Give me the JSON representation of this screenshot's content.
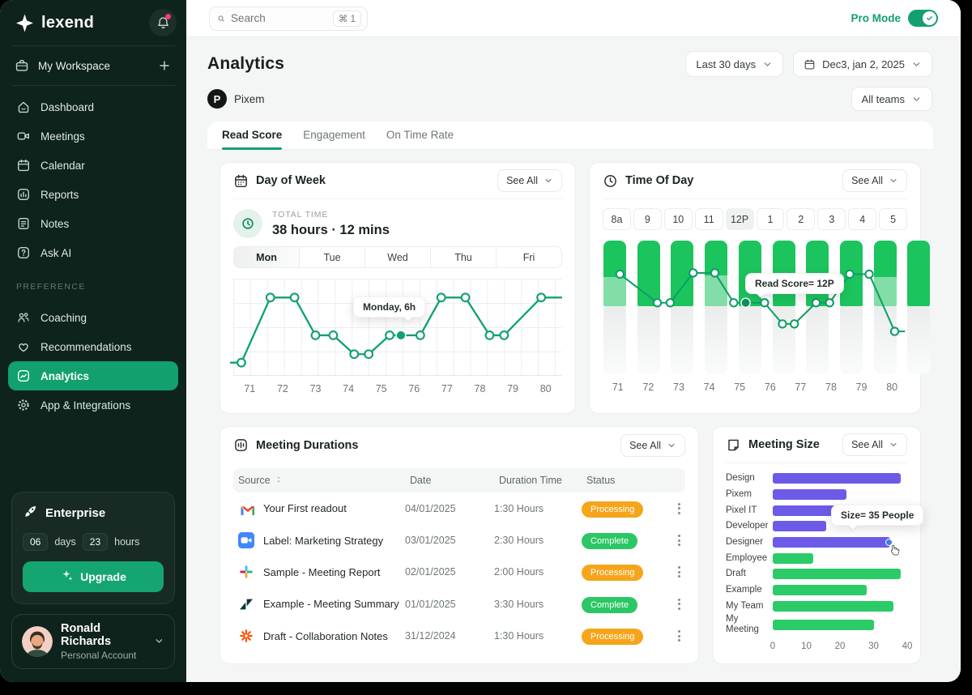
{
  "see_all": "See All",
  "sidebar": {
    "logo_text": "lexend",
    "workspace": {
      "label": "My Workspace"
    },
    "nav_main": [
      {
        "icon": "home-icon",
        "label": "Dashboard"
      },
      {
        "icon": "video-icon",
        "label": "Meetings"
      },
      {
        "icon": "calendar-icon",
        "label": "Calendar"
      },
      {
        "icon": "reports-icon",
        "label": "Reports"
      },
      {
        "icon": "notes-icon",
        "label": "Notes"
      },
      {
        "icon": "ask-ai-icon",
        "label": "Ask AI"
      }
    ],
    "preference_label": "PREFERENCE",
    "nav_preference": [
      {
        "icon": "coaching-icon",
        "label": "Coaching"
      },
      {
        "icon": "heart-icon",
        "label": "Recommendations"
      },
      {
        "icon": "analytics-icon",
        "label": "Analytics",
        "active": true
      },
      {
        "icon": "integrations-icon",
        "label": "App & Integrations"
      }
    ],
    "enterprise": {
      "title": "Enterprise",
      "days_value": "06",
      "days_label": "days",
      "hours_value": "23",
      "hours_label": "hours",
      "upgrade_label": "Upgrade"
    },
    "user": {
      "name": "Ronald Richards",
      "account_type": "Personal Account"
    }
  },
  "topbar": {
    "search_placeholder": "Search",
    "search_shortcut": "⌘ 1",
    "pro_mode_label": "Pro Mode"
  },
  "header": {
    "title": "Analytics",
    "range_filter": "Last 30 days",
    "date_filter": "Dec3, jan 2, 2025",
    "brand": "Pixem",
    "brand_initial": "P",
    "teams_filter": "All teams"
  },
  "tabs": [
    {
      "label": "Read Score",
      "active": true
    },
    {
      "label": "Engagement",
      "active": false
    },
    {
      "label": "On Time Rate",
      "active": false
    }
  ],
  "cards": {
    "day_of_week": {
      "title": "Day of Week",
      "total_time_label": "TOTAL TIME",
      "total_time_value": "38 hours · 12 mins",
      "day_tabs": [
        "Mon",
        "Tue",
        "Wed",
        "Thu",
        "Fri"
      ],
      "active_day": "Mon",
      "tooltip": "Monday, 6h"
    },
    "time_of_day": {
      "title": "Time Of Day",
      "hour_tabs": [
        "8a",
        "9",
        "10",
        "11",
        "12P",
        "1",
        "2",
        "3",
        "4",
        "5"
      ],
      "active_hour": "12P",
      "tooltip": "Read Score= 12P"
    },
    "meeting_durations": {
      "title": "Meeting Durations",
      "columns": [
        "Source",
        "Date",
        "Duration Time",
        "Status"
      ],
      "rows": [
        {
          "icon": "gmail-icon",
          "source": "Your First readout",
          "date": "04/01/2025",
          "duration": "1:30 Hours",
          "status": "Processing"
        },
        {
          "icon": "zoom-icon",
          "source": "Label: Marketing Strategy",
          "date": "03/01/2025",
          "duration": "2:30 Hours",
          "status": "Complete"
        },
        {
          "icon": "slack-icon",
          "source": "Sample - Meeting Report",
          "date": "02/01/2025",
          "duration": "2:00 Hours",
          "status": "Processing"
        },
        {
          "icon": "zendesk-icon",
          "source": "Example - Meeting Summary",
          "date": "01/01/2025",
          "duration": "3:30 Hours",
          "status": "Complete"
        },
        {
          "icon": "zapier-icon",
          "source": "Draft - Collaboration Notes",
          "date": "31/12/2024",
          "duration": "1:30 Hours",
          "status": "Processing"
        }
      ]
    },
    "meeting_size": {
      "title": "Meeting Size",
      "tooltip": "Size= 35 People"
    }
  },
  "chart_data": [
    {
      "type": "line",
      "title": "Day of Week",
      "x_ticks": [
        71,
        72,
        73,
        74,
        75,
        76,
        77,
        78,
        79,
        80
      ],
      "xlim": [
        70.4,
        80.6
      ],
      "ylim": [
        4,
        9
      ],
      "ylabel": "hours",
      "grid": true,
      "series": [
        {
          "name": "hours",
          "points": [
            [
              70.3,
              4.55
            ],
            [
              70.65,
              4.55
            ],
            [
              71.55,
              8
            ],
            [
              72.3,
              8
            ],
            [
              72.95,
              6
            ],
            [
              73.5,
              6
            ],
            [
              74.15,
              5
            ],
            [
              74.6,
              5
            ],
            [
              75.25,
              6
            ],
            [
              75.6,
              6
            ],
            [
              76.2,
              6
            ],
            [
              76.85,
              8
            ],
            [
              77.6,
              8
            ],
            [
              78.35,
              6
            ],
            [
              78.8,
              6
            ],
            [
              79.95,
              8
            ],
            [
              80.6,
              8
            ]
          ]
        }
      ],
      "highlight": {
        "index": 9,
        "x": 75.6,
        "value_label": "Monday, 6h"
      }
    },
    {
      "type": "bar+line",
      "title": "Time Of Day",
      "categories": [
        71,
        72,
        73,
        74,
        75,
        76,
        77,
        78,
        79,
        80
      ],
      "bars": {
        "note": "uniform-height green bars with gray ghost continuation",
        "values": [
          100,
          100,
          100,
          100,
          100,
          100,
          100,
          100,
          100,
          100
        ]
      },
      "light_overlay_top_norm": {
        "0": 0.73,
        "3": 0.74,
        "8": 0.73
      },
      "green_bottom_norm": 0.51,
      "line_points_norm": [
        [
          0.19,
          0.73
        ],
        [
          1.38,
          0.5
        ],
        [
          1.79,
          0.5
        ],
        [
          2.52,
          0.74
        ],
        [
          3.21,
          0.74
        ],
        [
          3.81,
          0.5
        ],
        [
          4.19,
          0.5
        ],
        [
          4.79,
          0.5
        ],
        [
          5.36,
          0.33
        ],
        [
          5.74,
          0.33
        ],
        [
          6.43,
          0.5
        ],
        [
          6.86,
          0.5
        ],
        [
          7.5,
          0.73
        ],
        [
          8.12,
          0.73
        ],
        [
          8.93,
          0.27
        ],
        [
          9.26,
          0.27
        ]
      ],
      "highlight": {
        "line_point_index": 6,
        "value_label": "Read Score= 12P"
      }
    },
    {
      "type": "bar-horizontal",
      "title": "Meeting Size",
      "categories": [
        "Design",
        "Pixem",
        "Pixel IT",
        "Developer",
        "Designer",
        "Employee",
        "Draft",
        "Example",
        "My Team",
        "My Meeting"
      ],
      "values": [
        38,
        22,
        32,
        16,
        35,
        12,
        38,
        28,
        36,
        30
      ],
      "bar_colors": [
        "purple",
        "purple",
        "purple",
        "purple",
        "purple",
        "green",
        "green",
        "green",
        "green",
        "green"
      ],
      "xlim": [
        0,
        40
      ],
      "x_ticks": [
        0,
        10,
        20,
        30,
        40
      ],
      "highlight": {
        "category": "Designer",
        "value": 35,
        "label": "Size= 35 People"
      }
    }
  ],
  "colors": {
    "accent_green": "#12a16e",
    "bar_green": "#1cc45e",
    "size_green": "#2bcb67",
    "size_purple": "#6c5be6",
    "status": {
      "Processing": "#f6a51b",
      "Complete": "#2bc765"
    },
    "sidebar_bg": "#0e231c"
  }
}
